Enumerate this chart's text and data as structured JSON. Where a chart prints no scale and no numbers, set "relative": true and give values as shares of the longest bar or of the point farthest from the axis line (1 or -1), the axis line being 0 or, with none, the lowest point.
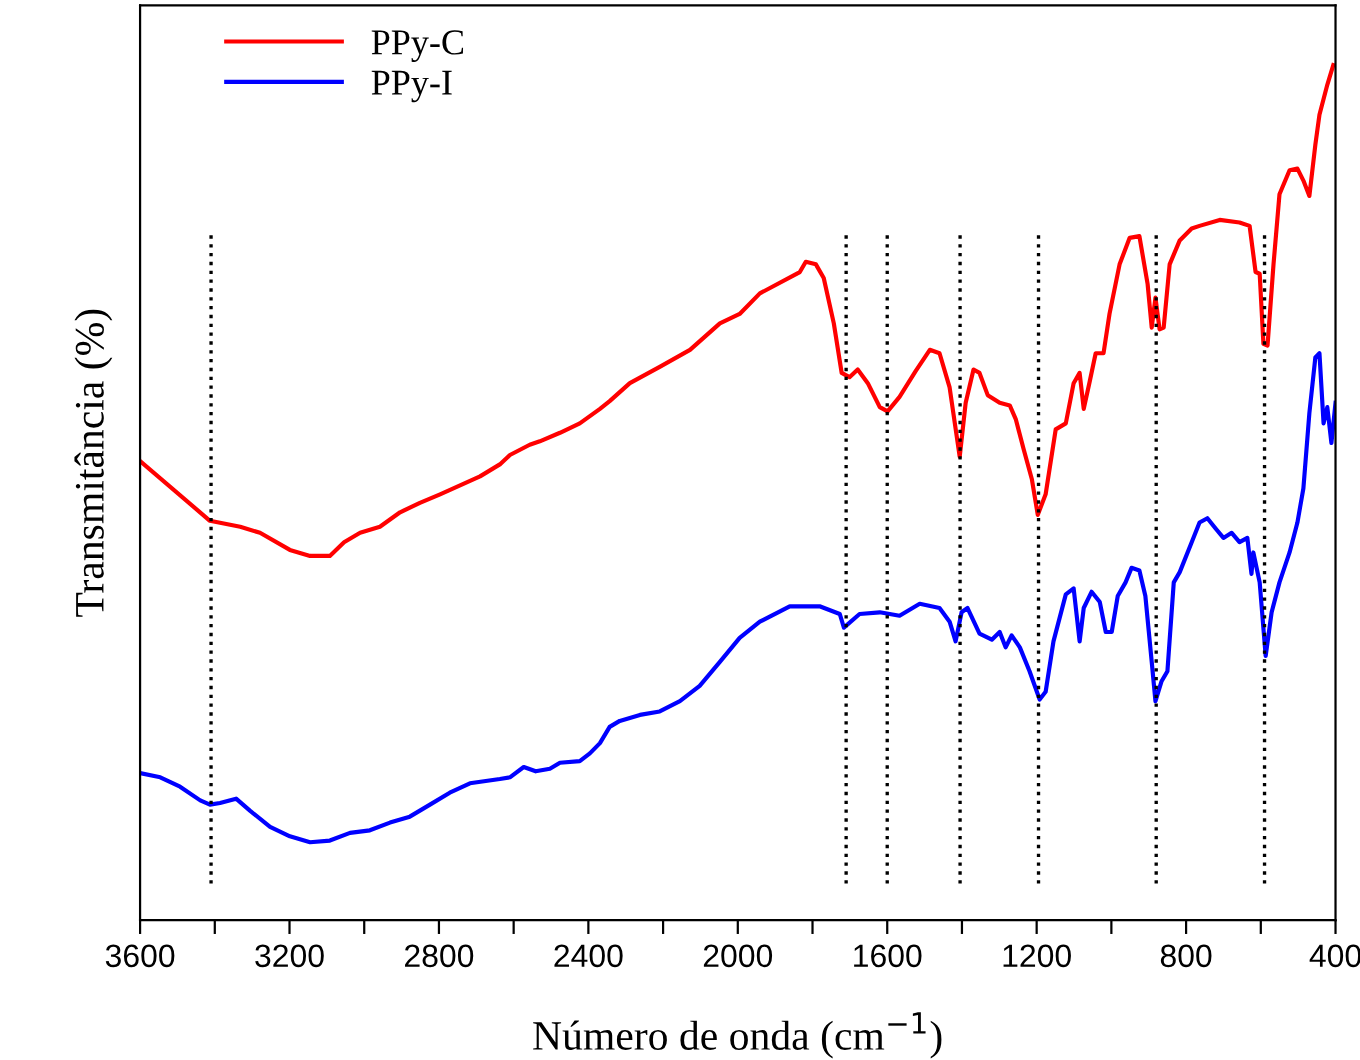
{
  "chart_data": {
    "type": "line",
    "xlabel": "Número de onda (cm$^{−1}$)",
    "ylabel": "Transmitância (%)",
    "relative": true,
    "xlim": [
      3600,
      400
    ],
    "xticks": [
      3600,
      {
        "value": 3400,
        "label": null
      },
      3200,
      {
        "value": 3000,
        "label": null
      },
      2800,
      {
        "value": 2600,
        "label": null
      },
      2400,
      {
        "value": 2200,
        "label": null
      },
      2000,
      {
        "value": 1800,
        "label": null
      },
      1600,
      {
        "value": 1400,
        "label": null
      },
      1200,
      {
        "value": 1000,
        "label": null
      },
      800,
      {
        "value": 600,
        "label": null
      },
      400
    ],
    "tick_labels": "x",
    "grid": false,
    "legend": "top left",
    "marker": "none",
    "line_style": "solid",
    "ref_lines": [
      {
        "axis": "x",
        "value": 3410,
        "color": "#000000",
        "line_style": "dotted"
      },
      {
        "axis": "x",
        "value": 1710,
        "color": "#000000",
        "line_style": "dotted"
      },
      {
        "axis": "x",
        "value": 1600,
        "color": "#000000",
        "line_style": "dotted"
      },
      {
        "axis": "x",
        "value": 1405,
        "color": "#000000",
        "line_style": "dotted"
      },
      {
        "axis": "x",
        "value": 1195,
        "color": "#000000",
        "line_style": "dotted"
      },
      {
        "axis": "x",
        "value": 880,
        "color": "#000000",
        "line_style": "dotted"
      },
      {
        "axis": "x",
        "value": 590,
        "color": "#000000",
        "line_style": "dotted"
      }
    ],
    "series": [
      {
        "name": "PPy-C",
        "color": "#ff0000",
        "x": [
          3600,
          3413,
          3332,
          3279,
          3199,
          3145,
          3092,
          3054,
          3011,
          2958,
          2904,
          2851,
          2797,
          2690,
          2637,
          2610,
          2557,
          2530,
          2476,
          2423,
          2369,
          2343,
          2289,
          2209,
          2128,
          2048,
          1995,
          1941,
          1834,
          1818,
          1791,
          1770,
          1743,
          1722,
          1701,
          1679,
          1652,
          1620,
          1599,
          1567,
          1524,
          1486,
          1460,
          1433,
          1406,
          1390,
          1369,
          1353,
          1331,
          1299,
          1272,
          1256,
          1235,
          1213,
          1197,
          1176,
          1149,
          1122,
          1101,
          1085,
          1074,
          1058,
          1042,
          1021,
          1005,
          978,
          951,
          925,
          903,
          892,
          882,
          871,
          860,
          844,
          817,
          785,
          764,
          710,
          657,
          630,
          614,
          603,
          593,
          582,
          566,
          550,
          523,
          502,
          486,
          470,
          454,
          443,
          422,
          406
        ],
        "values": [
          0.537,
          0.467,
          0.46,
          0.453,
          0.433,
          0.426,
          0.426,
          0.442,
          0.453,
          0.46,
          0.477,
          0.488,
          0.498,
          0.519,
          0.533,
          0.544,
          0.556,
          0.56,
          0.57,
          0.581,
          0.598,
          0.607,
          0.628,
          0.647,
          0.667,
          0.698,
          0.709,
          0.733,
          0.758,
          0.77,
          0.767,
          0.751,
          0.698,
          0.64,
          0.635,
          0.644,
          0.628,
          0.6,
          0.595,
          0.612,
          0.642,
          0.667,
          0.663,
          0.623,
          0.542,
          0.605,
          0.644,
          0.64,
          0.614,
          0.605,
          0.602,
          0.586,
          0.551,
          0.516,
          0.474,
          0.498,
          0.574,
          0.581,
          0.628,
          0.64,
          0.598,
          0.63,
          0.663,
          0.663,
          0.709,
          0.767,
          0.798,
          0.8,
          0.744,
          0.693,
          0.728,
          0.691,
          0.693,
          0.767,
          0.795,
          0.809,
          0.812,
          0.819,
          0.816,
          0.812,
          0.758,
          0.756,
          0.674,
          0.672,
          0.767,
          0.849,
          0.877,
          0.879,
          0.865,
          0.847,
          0.907,
          0.942,
          0.977,
          1.0
        ]
      },
      {
        "name": "PPy-I",
        "color": "#0000ff",
        "x": [
          3600,
          3546,
          3493,
          3439,
          3413,
          3386,
          3343,
          3306,
          3252,
          3199,
          3145,
          3092,
          3038,
          2985,
          2931,
          2878,
          2824,
          2771,
          2717,
          2637,
          2610,
          2573,
          2541,
          2503,
          2476,
          2423,
          2396,
          2369,
          2343,
          2316,
          2262,
          2209,
          2155,
          2102,
          2048,
          1995,
          1941,
          1861,
          1781,
          1727,
          1716,
          1674,
          1620,
          1567,
          1513,
          1460,
          1433,
          1417,
          1401,
          1385,
          1353,
          1320,
          1299,
          1283,
          1267,
          1245,
          1219,
          1192,
          1176,
          1155,
          1122,
          1101,
          1085,
          1074,
          1053,
          1031,
          1015,
          999,
          983,
          962,
          946,
          925,
          909,
          892,
          882,
          866,
          850,
          833,
          817,
          785,
          764,
          743,
          721,
          700,
          678,
          657,
          636,
          625,
          620,
          603,
          587,
          571,
          550,
          523,
          502,
          486,
          470,
          454,
          443,
          432,
          422,
          411,
          400
        ],
        "values": [
          0.172,
          0.167,
          0.156,
          0.14,
          0.135,
          0.137,
          0.142,
          0.128,
          0.109,
          0.098,
          0.091,
          0.093,
          0.102,
          0.105,
          0.114,
          0.121,
          0.135,
          0.149,
          0.16,
          0.165,
          0.167,
          0.179,
          0.174,
          0.177,
          0.184,
          0.186,
          0.195,
          0.207,
          0.226,
          0.233,
          0.24,
          0.244,
          0.256,
          0.274,
          0.302,
          0.33,
          0.349,
          0.367,
          0.367,
          0.358,
          0.342,
          0.358,
          0.36,
          0.356,
          0.37,
          0.365,
          0.349,
          0.326,
          0.36,
          0.365,
          0.335,
          0.328,
          0.337,
          0.319,
          0.333,
          0.319,
          0.291,
          0.258,
          0.267,
          0.326,
          0.381,
          0.388,
          0.326,
          0.365,
          0.384,
          0.372,
          0.337,
          0.337,
          0.379,
          0.395,
          0.412,
          0.409,
          0.379,
          0.302,
          0.256,
          0.279,
          0.291,
          0.395,
          0.407,
          0.442,
          0.465,
          0.47,
          0.458,
          0.447,
          0.453,
          0.442,
          0.447,
          0.405,
          0.43,
          0.395,
          0.309,
          0.36,
          0.395,
          0.43,
          0.465,
          0.505,
          0.593,
          0.658,
          0.663,
          0.581,
          0.6,
          0.558,
          0.605
        ]
      }
    ]
  }
}
